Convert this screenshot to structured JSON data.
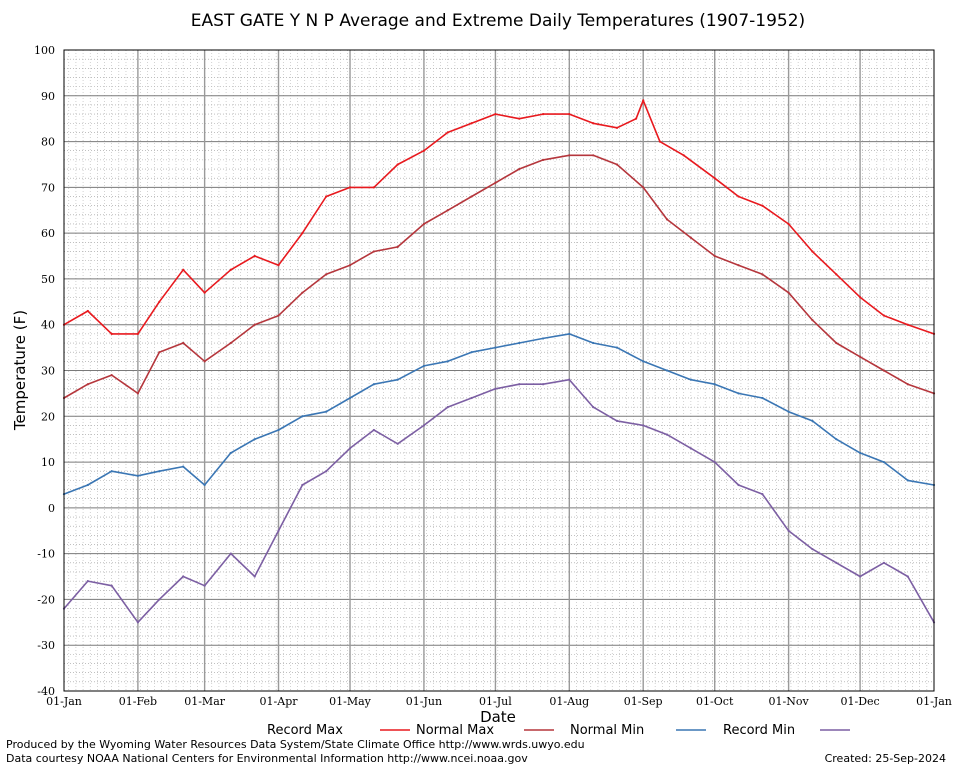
{
  "chart_data": {
    "type": "line",
    "title": "EAST GATE Y N P Average and Extreme Daily Temperatures (1907-1952)",
    "xlabel": "Date",
    "ylabel": "Temperature (F)",
    "ylim": [
      -40,
      100
    ],
    "y_ticks": [
      "100",
      "90",
      "80",
      "70",
      "60",
      "50",
      "40",
      "30",
      "20",
      "10",
      "0",
      "-10",
      "-20",
      "-30",
      "-40"
    ],
    "x_ticks": [
      "01-Jan",
      "01-Feb",
      "01-Mar",
      "01-Apr",
      "01-May",
      "01-Jun",
      "01-Jul",
      "01-Aug",
      "01-Sep",
      "01-Oct",
      "01-Nov",
      "01-Dec",
      "01-Jan"
    ],
    "x_tick_days": [
      0,
      31,
      59,
      90,
      120,
      151,
      181,
      212,
      243,
      273,
      304,
      334,
      365
    ],
    "grid": true,
    "legend_position": "bottom",
    "series": [
      {
        "name": "Record Max",
        "color": "#e8191e",
        "days": [
          0,
          10,
          20,
          31,
          40,
          50,
          59,
          70,
          80,
          90,
          100,
          110,
          120,
          130,
          140,
          151,
          161,
          171,
          181,
          191,
          201,
          212,
          222,
          232,
          240,
          243,
          250,
          260,
          273,
          283,
          293,
          304,
          314,
          324,
          334,
          344,
          354,
          365
        ],
        "values": [
          40,
          43,
          38,
          38,
          45,
          52,
          47,
          52,
          55,
          53,
          60,
          68,
          70,
          70,
          75,
          78,
          82,
          84,
          86,
          85,
          86,
          86,
          84,
          83,
          85,
          89,
          80,
          77,
          72,
          68,
          66,
          62,
          56,
          51,
          46,
          42,
          40,
          38
        ]
      },
      {
        "name": "Normal Max",
        "color": "#b5363c",
        "days": [
          0,
          10,
          20,
          31,
          40,
          50,
          59,
          70,
          80,
          90,
          100,
          110,
          120,
          130,
          140,
          151,
          161,
          171,
          181,
          191,
          201,
          212,
          222,
          232,
          243,
          253,
          263,
          273,
          283,
          293,
          304,
          314,
          324,
          334,
          344,
          354,
          365
        ],
        "values": [
          24,
          27,
          29,
          25,
          34,
          36,
          32,
          36,
          40,
          42,
          47,
          51,
          53,
          56,
          57,
          62,
          65,
          68,
          71,
          74,
          76,
          77,
          77,
          75,
          70,
          63,
          59,
          55,
          53,
          51,
          47,
          41,
          36,
          33,
          30,
          27,
          25
        ]
      },
      {
        "name": "Normal Min",
        "color": "#3a76b4",
        "days": [
          0,
          10,
          20,
          31,
          40,
          50,
          59,
          70,
          80,
          90,
          100,
          110,
          120,
          130,
          140,
          151,
          161,
          171,
          181,
          191,
          201,
          212,
          222,
          232,
          243,
          253,
          263,
          273,
          283,
          293,
          304,
          314,
          324,
          334,
          344,
          354,
          365
        ],
        "values": [
          3,
          5,
          8,
          7,
          8,
          9,
          5,
          12,
          15,
          17,
          20,
          21,
          24,
          27,
          28,
          31,
          32,
          34,
          35,
          36,
          37,
          38,
          36,
          35,
          32,
          30,
          28,
          27,
          25,
          24,
          21,
          19,
          15,
          12,
          10,
          6,
          5
        ]
      },
      {
        "name": "Record Min",
        "color": "#7c5fa3",
        "days": [
          0,
          10,
          20,
          31,
          40,
          50,
          59,
          70,
          80,
          90,
          100,
          110,
          120,
          130,
          140,
          151,
          161,
          171,
          181,
          191,
          201,
          212,
          222,
          232,
          243,
          253,
          263,
          273,
          283,
          293,
          304,
          314,
          324,
          334,
          344,
          354,
          365
        ],
        "values": [
          -22,
          -16,
          -17,
          -25,
          -20,
          -15,
          -17,
          -10,
          -15,
          -5,
          5,
          8,
          13,
          17,
          14,
          18,
          22,
          24,
          26,
          27,
          27,
          28,
          22,
          19,
          18,
          16,
          13,
          10,
          5,
          3,
          -5,
          -9,
          -12,
          -15,
          -12,
          -15,
          -25
        ]
      }
    ]
  },
  "footer": {
    "produced_by": "Produced by the Wyoming Water Resources Data System/State Climate Office http://www.wrds.uwyo.edu",
    "data_courtesy": "Data courtesy NOAA National Centers for Environmental Information http://www.ncei.noaa.gov",
    "created": "Created:  25-Sep-2024"
  }
}
